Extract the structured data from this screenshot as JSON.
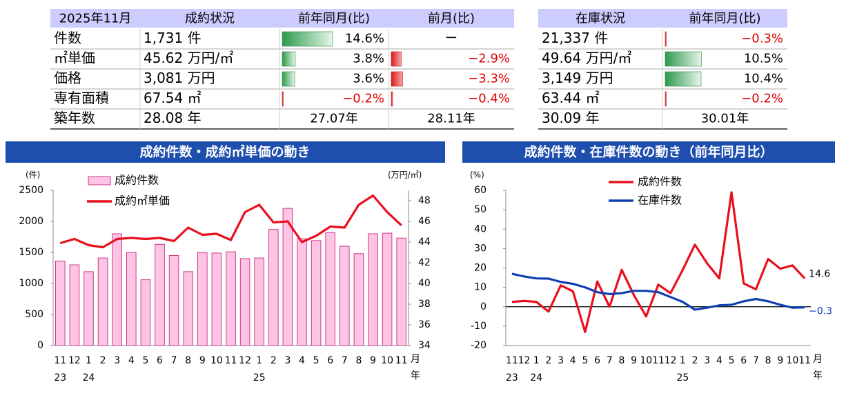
{
  "tables": [
    {
      "header": [
        "2025年11月",
        "成約状況",
        "前年同月(比)",
        "前月(比)"
      ],
      "rows": [
        [
          "件数",
          "1,731 件",
          {
            "value": 14.6,
            "label": "14.6%"
          },
          "ー"
        ],
        [
          "㎡単価",
          "45.62 万円/㎡",
          {
            "value": 3.8,
            "label": "3.8%"
          },
          {
            "value": -2.9,
            "label": "−2.9%"
          }
        ],
        [
          "価格",
          "3,081 万円",
          {
            "value": 3.6,
            "label": "3.6%"
          },
          {
            "value": -3.3,
            "label": "−3.3%"
          }
        ],
        [
          "専有面積",
          "67.54 ㎡",
          {
            "value": -0.2,
            "label": "−0.2%"
          },
          {
            "value": -0.4,
            "label": "−0.4%"
          }
        ],
        [
          "築年数",
          "28.08 年",
          "27.07年",
          "28.11年"
        ]
      ]
    },
    {
      "header": [
        "在庫状況",
        "前年同月(比)"
      ],
      "rows": [
        [
          "21,337 件",
          {
            "value": -0.3,
            "label": "−0.3%"
          }
        ],
        [
          "49.64 万円/㎡",
          {
            "value": 10.5,
            "label": "10.5%"
          }
        ],
        [
          "3,149 万円",
          {
            "value": 10.4,
            "label": "10.4%"
          }
        ],
        [
          "63.44 ㎡",
          {
            "value": -0.2,
            "label": "−0.2%"
          }
        ],
        [
          "30.09 年",
          "30.01年"
        ]
      ]
    }
  ],
  "chart_data": [
    {
      "type": "bar",
      "title": "成約件数・成約㎡単価の動き",
      "ylabel": "(件)",
      "y2label": "(万円/㎡)",
      "categories": [
        "11",
        "12",
        "1",
        "2",
        "3",
        "4",
        "5",
        "6",
        "7",
        "8",
        "9",
        "10",
        "11",
        "12",
        "1",
        "2",
        "3",
        "4",
        "5",
        "6",
        "7",
        "8",
        "9",
        "10",
        "11"
      ],
      "year_labels": [
        "23",
        null,
        "24",
        null,
        null,
        null,
        null,
        null,
        null,
        null,
        null,
        null,
        null,
        null,
        "25",
        null,
        null,
        null,
        null,
        null,
        null,
        null,
        null,
        null,
        null
      ],
      "x_unit_month": "月",
      "x_unit_year": "年",
      "ylim": [
        0,
        2500
      ],
      "yticks": [
        0,
        500,
        1000,
        1500,
        2000,
        2500
      ],
      "y2lim": [
        34,
        49
      ],
      "y2ticks": [
        34,
        36,
        38,
        40,
        42,
        44,
        46,
        48
      ],
      "series": [
        {
          "name": "成約件数",
          "type": "bar",
          "color": "#ffc4e4",
          "edge": "#c8388a",
          "values": [
            1360,
            1300,
            1190,
            1410,
            1800,
            1500,
            1060,
            1630,
            1450,
            1190,
            1500,
            1490,
            1510,
            1400,
            1410,
            1870,
            2210,
            1720,
            1690,
            1820,
            1600,
            1480,
            1800,
            1810,
            1731
          ]
        },
        {
          "name": "成約㎡単価",
          "type": "line",
          "axis": "y2",
          "color": "#e8101c",
          "values": [
            43.9,
            44.3,
            43.7,
            43.5,
            44.3,
            44.4,
            44.3,
            44.4,
            44.1,
            45.4,
            44.7,
            44.8,
            44.2,
            46.9,
            47.6,
            45.9,
            46.0,
            44.0,
            44.6,
            45.5,
            45.4,
            47.6,
            48.5,
            46.9,
            45.62
          ]
        }
      ]
    },
    {
      "type": "line",
      "title": "成約件数・在庫件数の動き（前年同月比）",
      "ylabel": "(%)",
      "categories": [
        "11",
        "12",
        "1",
        "2",
        "3",
        "4",
        "5",
        "6",
        "7",
        "8",
        "9",
        "10",
        "11",
        "12",
        "1",
        "2",
        "3",
        "4",
        "5",
        "6",
        "7",
        "8",
        "9",
        "10",
        "11"
      ],
      "year_labels": [
        "23",
        null,
        "24",
        null,
        null,
        null,
        null,
        null,
        null,
        null,
        null,
        null,
        null,
        null,
        "25",
        null,
        null,
        null,
        null,
        null,
        null,
        null,
        null,
        null,
        null
      ],
      "x_unit_month": "月",
      "x_unit_year": "年",
      "ylim": [
        -20,
        60
      ],
      "yticks": [
        -20,
        -10,
        0,
        10,
        20,
        30,
        40,
        50,
        60
      ],
      "zero_line": true,
      "series": [
        {
          "name": "成約件数",
          "color": "#e8101c",
          "last_label": "14.6",
          "values": [
            2.5,
            3,
            2.5,
            -2.5,
            11,
            8,
            -13,
            13,
            0,
            19,
            6,
            -5,
            11.4,
            7,
            19,
            32,
            22.4,
            14.6,
            59,
            12,
            9,
            24.6,
            19.6,
            21.3,
            14.6
          ]
        },
        {
          "name": "在庫件数",
          "color": "#1040b0",
          "last_label": "−0.3",
          "values": [
            17,
            15.6,
            14.6,
            14.5,
            12.8,
            11.8,
            10,
            7.5,
            6.5,
            7,
            8.2,
            8.2,
            7.5,
            5,
            2.5,
            -1.5,
            -0.5,
            0.7,
            1,
            2.8,
            4,
            2.8,
            1,
            -0.5,
            -0.3
          ]
        }
      ]
    }
  ]
}
